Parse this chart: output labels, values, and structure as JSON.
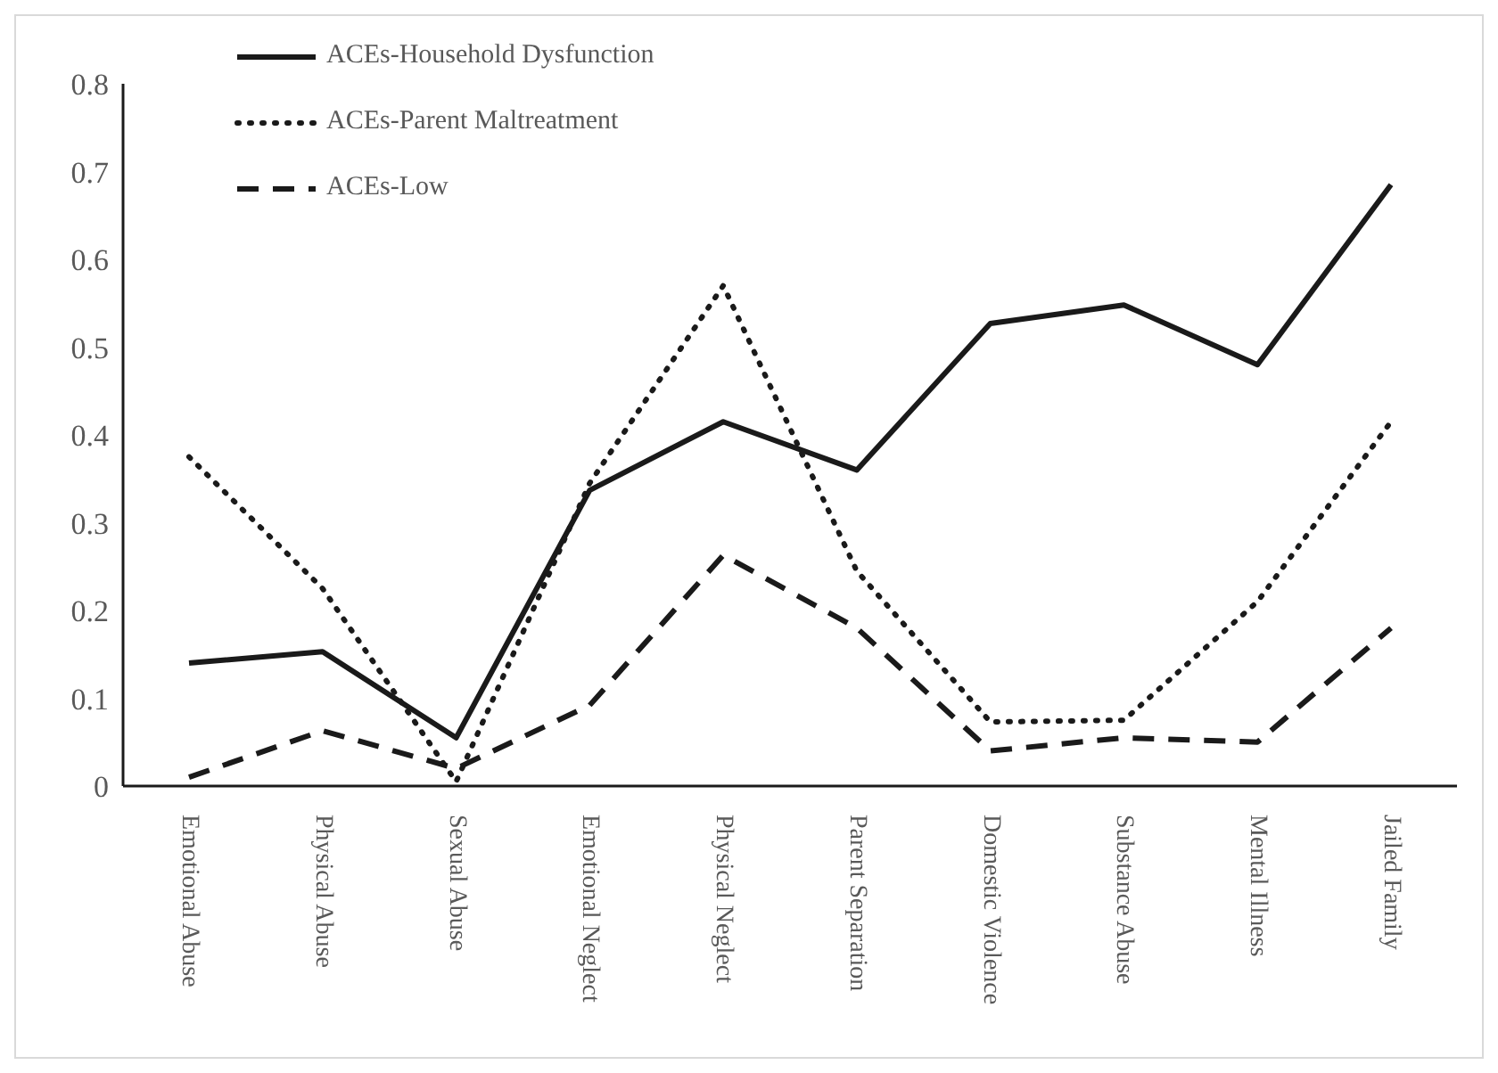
{
  "chart_data": {
    "type": "line",
    "categories": [
      "Emotional Abuse",
      "Physical Abuse",
      "Sexual Abuse",
      "Emotional Neglect",
      "Physical Neglect",
      "Parent Separation",
      "Domestic Violence",
      "Substance Abuse",
      "Mental Illness",
      "Jailed Family"
    ],
    "series": [
      {
        "name": "ACEs-Household Dysfunction",
        "color": "#1a1a1a",
        "line_style": "solid",
        "values": [
          0.14,
          0.153,
          0.055,
          0.337,
          0.415,
          0.36,
          0.527,
          0.548,
          0.48,
          0.685
        ]
      },
      {
        "name": "ACEs-Parent Maltreatment",
        "color": "#1a1a1a",
        "line_style": "dotted",
        "values": [
          0.375,
          0.225,
          0.005,
          0.345,
          0.57,
          0.245,
          0.073,
          0.075,
          0.21,
          0.415
        ]
      },
      {
        "name": "ACEs-Low",
        "color": "#1a1a1a",
        "line_style": "dashed",
        "values": [
          0.01,
          0.063,
          0.02,
          0.092,
          0.263,
          0.18,
          0.04,
          0.055,
          0.05,
          0.18
        ]
      }
    ],
    "ylim": [
      0,
      0.8
    ],
    "yticks": [
      0,
      0.1,
      0.2,
      0.3,
      0.4,
      0.5,
      0.6,
      0.7,
      0.8
    ],
    "grid": false,
    "legend": "top left",
    "marker": "none"
  }
}
